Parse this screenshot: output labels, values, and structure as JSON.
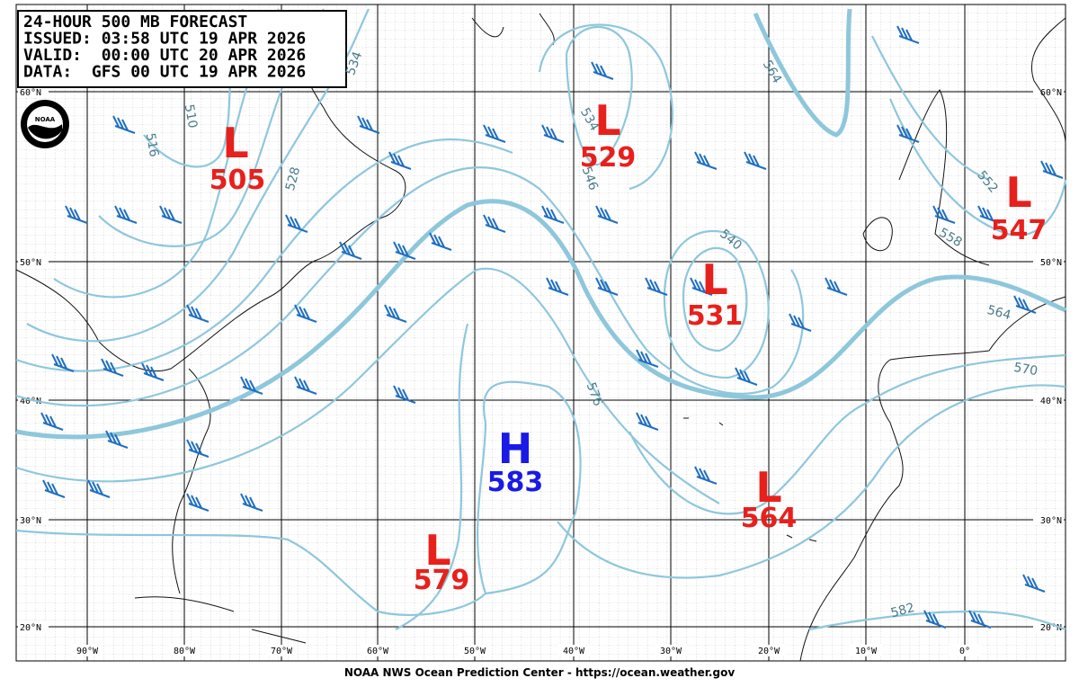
{
  "header": {
    "lines": [
      "24-HOUR 500 MB FORECAST",
      "ISSUED: 03:58 UTC 19 APR 2026",
      "VALID:  00:00 UTC 20 APR 2026",
      "DATA:  GFS 00 UTC 19 APR 2026"
    ],
    "logo_text": "NOAA"
  },
  "centers": [
    {
      "letter": "L",
      "value": 505
    },
    {
      "letter": "L",
      "value": 529
    },
    {
      "letter": "L",
      "value": 531
    },
    {
      "letter": "L",
      "value": 547
    },
    {
      "letter": "L",
      "value": 564
    },
    {
      "letter": "L",
      "value": 579
    },
    {
      "letter": "H",
      "value": 583
    }
  ],
  "contour_labels": [
    510,
    516,
    528,
    534,
    534,
    540,
    546,
    552,
    558,
    564,
    564,
    570,
    576,
    582
  ],
  "latitudes": [
    "60°N",
    "50°N",
    "40°N",
    "30°N",
    "20°N"
  ],
  "longitudes": [
    "90°W",
    "80°W",
    "70°W",
    "60°W",
    "50°W",
    "40°W",
    "30°W",
    "20°W",
    "10°W",
    "0°"
  ],
  "footer": "NOAA NWS Ocean Prediction Center - https://ocean.weather.gov"
}
